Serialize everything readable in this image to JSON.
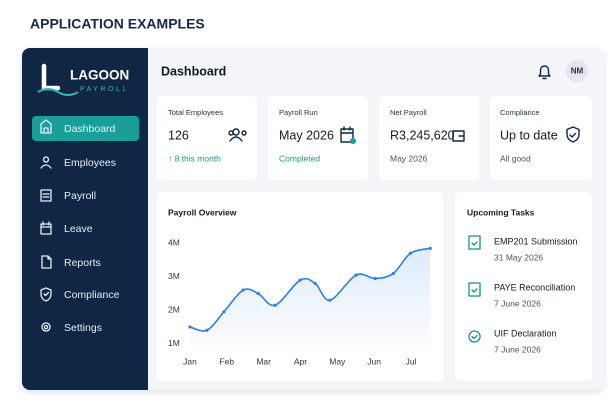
{
  "header": {
    "title": "APPLICATION EXAMPLES"
  },
  "logo": {
    "name": "LAGOON",
    "sub": "PAYROLL"
  },
  "nav": [
    "Dashboard",
    "Employees",
    "Payroll",
    "Leave",
    "Reports",
    "Compliance",
    "Settings"
  ],
  "page_title": "Dashboard",
  "user_initials": "NM",
  "cards": [
    {
      "label": "Total Employees",
      "value": "126",
      "note": "↑ 8 this month"
    },
    {
      "label": "Payroll Run",
      "value": "May 2026",
      "note": "Completed"
    },
    {
      "label": "Net Payroll",
      "value": "R3,245,620",
      "note": "May 2026"
    },
    {
      "label": "Compliance",
      "value": "Up to date",
      "note": "All good"
    }
  ],
  "chart_data": {
    "type": "line",
    "title": "Payroll Overview",
    "x": [
      0,
      0.46,
      0.92,
      1.44,
      1.85,
      2.31,
      2.99,
      3.4,
      3.8,
      4.51,
      5.03,
      5.52,
      5.98,
      6.52
    ],
    "values": [
      1500000,
      1400000,
      1950000,
      2600000,
      2500000,
      2150000,
      2900000,
      2800000,
      2300000,
      3050000,
      2950000,
      3100000,
      3700000,
      3850000
    ],
    "color": "#2f7fe0",
    "xlim": [
      -0.2,
      6.7
    ],
    "xticks": [
      {
        "value": 0,
        "label": "Jan"
      },
      {
        "value": 1,
        "label": "Feb"
      },
      {
        "value": 2,
        "label": "Mar"
      },
      {
        "value": 3,
        "label": "Apr"
      },
      {
        "value": 4,
        "label": "May"
      },
      {
        "value": 5,
        "label": "Jun"
      },
      {
        "value": 6,
        "label": "Jul"
      }
    ],
    "ylim": [
      750000,
      4250000
    ],
    "yticks": [
      {
        "value": 1000000,
        "label": "1M"
      },
      {
        "value": 2000000,
        "label": "2M"
      },
      {
        "value": 3000000,
        "label": "3M"
      },
      {
        "value": 4000000,
        "label": "4M"
      }
    ],
    "grid": false
  },
  "tasks_title": "Upcoming Tasks",
  "tasks": [
    {
      "title": "EMP201 Submission",
      "date": "31 May 2026"
    },
    {
      "title": "PAYE Reconciliation",
      "date": "7 June 2026"
    },
    {
      "title": "UIF Declaration",
      "date": "7 June 2026"
    }
  ]
}
